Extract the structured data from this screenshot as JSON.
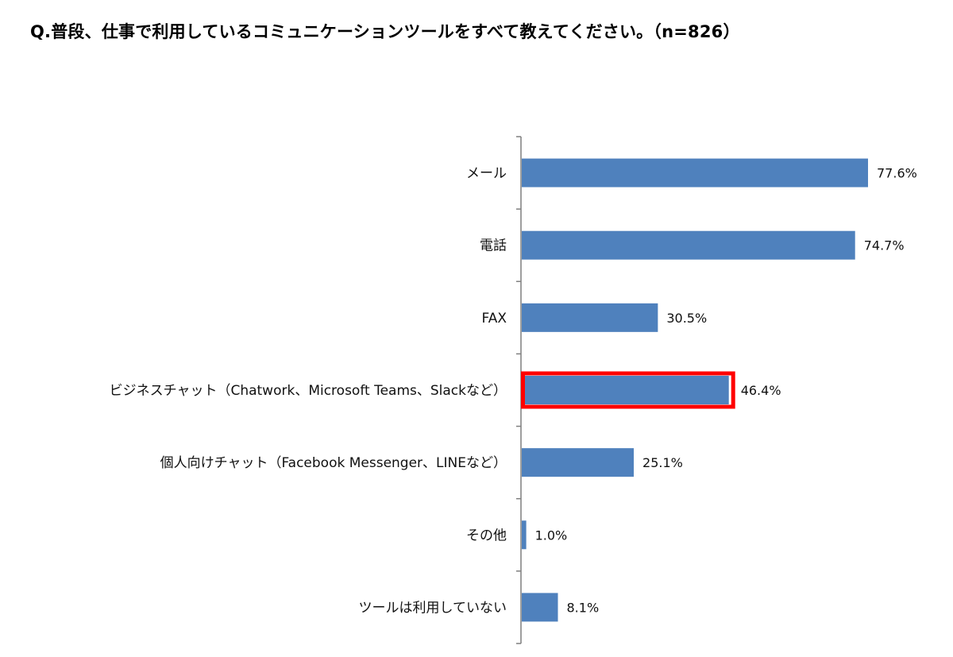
{
  "chart_data": {
    "type": "bar",
    "orientation": "horizontal",
    "title": "Q.普段、仕事で利用しているコミュニケーションツールをすべて教えてください。（n=826）",
    "categories": [
      "メール",
      "電話",
      "FAX",
      "ビジネスチャット（Chatwork、Microsoft Teams、Slackなど）",
      "個人向けチャット（Facebook Messenger、LINEなど）",
      "その他",
      "ツールは利用していない"
    ],
    "values": [
      77.6,
      74.7,
      30.5,
      46.4,
      25.1,
      1.0,
      8.1
    ],
    "value_labels": [
      "77.6%",
      "74.7%",
      "30.5%",
      "46.4%",
      "25.1%",
      "1.0%",
      "8.1%"
    ],
    "unit": "%",
    "xlim": [
      0,
      80
    ],
    "bar_color": "#4F81BD",
    "highlight_color": "#FF0000",
    "highlighted_category_index": 3,
    "grid": false,
    "legend": "none"
  }
}
